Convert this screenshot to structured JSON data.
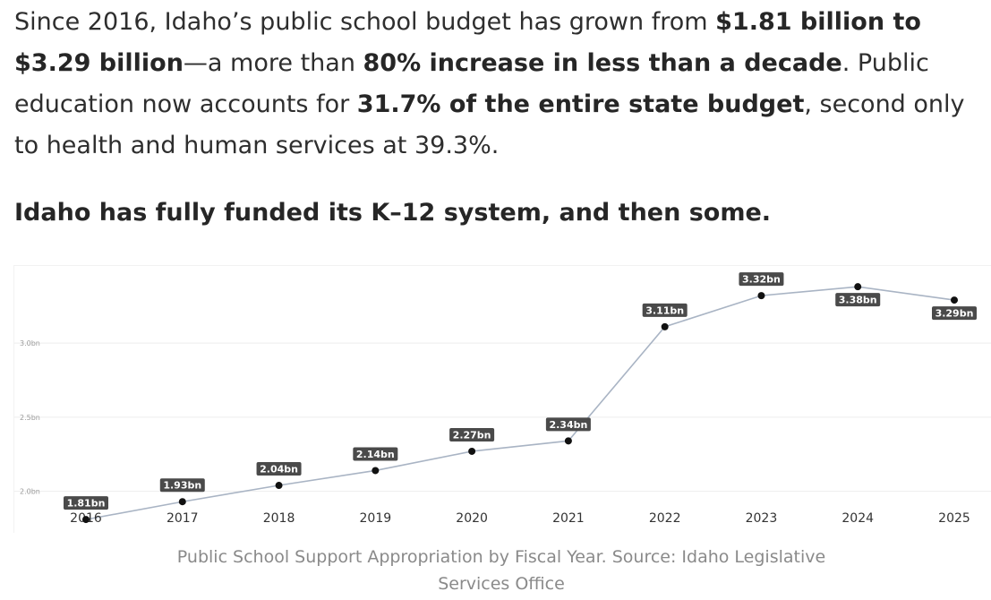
{
  "article": {
    "p1_t1": "Since 2016, Idaho’s public school budget has grown from ",
    "p1_b1": "$1.81 billion to $3.29 billion",
    "p1_t2": "—a more than ",
    "p1_b2": "80% increase in less than a decade",
    "p1_t3": ". Public education now accounts for ",
    "p1_b3": "31.7% of the entire state budget",
    "p1_t4": ", second only to health and human services at 39.3%.",
    "heading": "Idaho has fully funded its K–12 system, and then some.",
    "caption": "Public School Support Appropriation by Fiscal Year. Source: Idaho Legislative Services Office"
  },
  "colors": {
    "line": "#a9b4c4",
    "point": "#111111",
    "label_bg": "#4a4a4a",
    "label_text": "#ffffff",
    "grid": "#eeeeee",
    "axis_text": "#9a9a9a",
    "tick_text": "#333333"
  },
  "chart_data": {
    "type": "line",
    "title": "",
    "xlabel": "",
    "ylabel": "",
    "categories": [
      "2016",
      "2017",
      "2018",
      "2019",
      "2020",
      "2021",
      "2022",
      "2023",
      "2024",
      "2025"
    ],
    "values": [
      1.81,
      1.93,
      2.04,
      2.14,
      2.27,
      2.34,
      3.11,
      3.32,
      3.38,
      3.29
    ],
    "data_labels": [
      "1.81bn",
      "1.93bn",
      "2.04bn",
      "2.14bn",
      "2.27bn",
      "2.34bn",
      "3.11bn",
      "3.32bn",
      "3.38bn",
      "3.29bn"
    ],
    "y_ticks": [
      2.0,
      2.5,
      3.0
    ],
    "y_tick_labels": [
      "2.0bn",
      "2.5bn",
      "3.0bn"
    ],
    "ylim": [
      1.72,
      3.52
    ],
    "grid": true,
    "legend": "none"
  }
}
